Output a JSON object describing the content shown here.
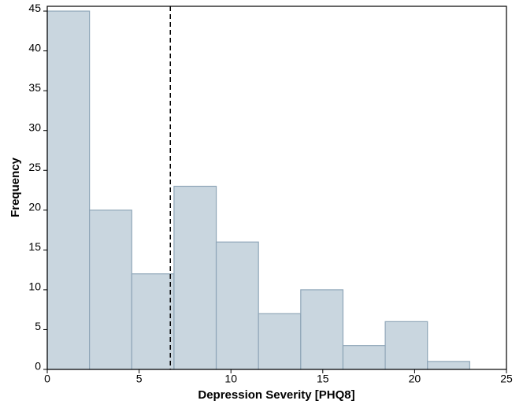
{
  "chart_data": {
    "type": "histogram",
    "xlabel": "Depression Severity [PHQ8]",
    "ylabel": "Frequency",
    "bins": [
      0,
      2.3,
      4.6,
      6.9,
      9.2,
      11.5,
      13.8,
      16.1,
      18.4,
      20.7,
      23
    ],
    "values": [
      45,
      20,
      12,
      23,
      16,
      7,
      10,
      3,
      6,
      1
    ],
    "color": "#c9d6df",
    "edge_color": "#8fa6b8",
    "vline": 6.7,
    "xlim": [
      0,
      25
    ],
    "xticks": [
      0,
      5,
      10,
      15,
      20,
      25
    ],
    "ylim": [
      0,
      45.6
    ],
    "yticks": [
      0,
      5,
      10,
      15,
      20,
      25,
      30,
      35,
      40,
      45
    ]
  }
}
